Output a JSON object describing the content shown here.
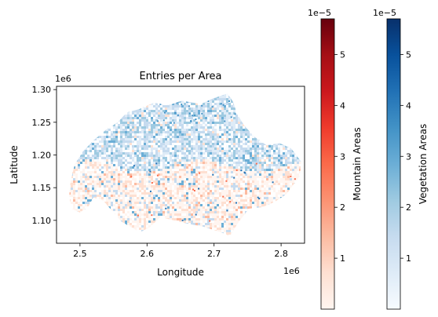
{
  "chart_data": [
    {
      "type": "heatmap",
      "title": "Entries per Area",
      "xlabel": "Longitude",
      "ylabel": "Latitude",
      "x_offset_label": "1e6",
      "y_offset_label": "1e6",
      "xticks": [
        "2.5",
        "2.6",
        "2.7",
        "2.8"
      ],
      "yticks": [
        "1.30",
        "1.25",
        "1.20",
        "1.15",
        "1.10"
      ],
      "xlim": [
        2.465,
        2.835
      ],
      "ylim": [
        1.065,
        1.305
      ],
      "x_scale_factor": 1000000,
      "y_scale_factor": 1000000,
      "grid": false,
      "layers": [
        {
          "name": "Vegetation Areas",
          "colormap": "Blues",
          "distribution": "northern and central Switzerland"
        },
        {
          "name": "Mountain Areas",
          "colormap": "Reds",
          "distribution": "southern Alps"
        }
      ]
    },
    {
      "type": "colorbar",
      "label": "Mountain Areas",
      "colormap": "Reds",
      "offset_label": "1e−5",
      "range": [
        0,
        5.7
      ],
      "ticks": [
        "1",
        "2",
        "3",
        "4",
        "5"
      ]
    },
    {
      "type": "colorbar",
      "label": "Vegetation Areas",
      "colormap": "Blues",
      "offset_label": "1e−5",
      "range": [
        0,
        5.7
      ],
      "ticks": [
        "1",
        "2",
        "3",
        "4",
        "5"
      ]
    }
  ],
  "colors": {
    "reds": [
      "#fff5f0",
      "#fee0d2",
      "#fcbba1",
      "#fc9272",
      "#fb6a4a",
      "#ef3b2c",
      "#cb181d",
      "#a50f15",
      "#67000d"
    ],
    "blues": [
      "#f7fbff",
      "#deebf7",
      "#c6dbef",
      "#9ecae1",
      "#6baed6",
      "#4292c6",
      "#2171b5",
      "#08519c",
      "#08306b"
    ]
  }
}
